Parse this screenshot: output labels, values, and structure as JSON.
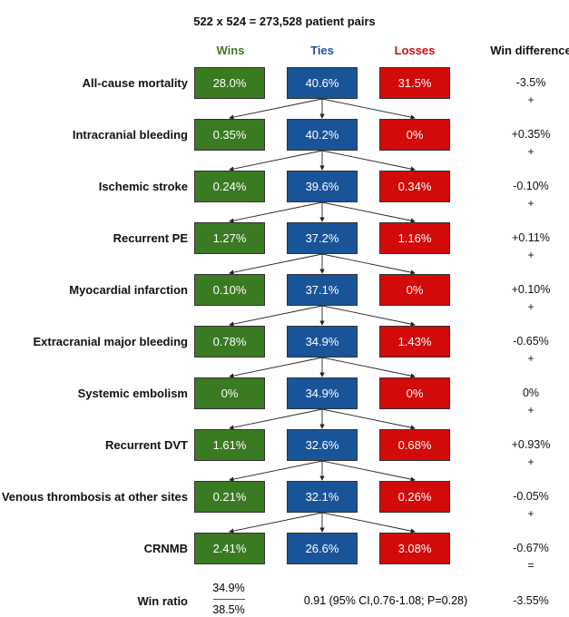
{
  "title": "522 x 524 = 273,528 patient pairs",
  "columns": {
    "wins": "Wins",
    "ties": "Ties",
    "losses": "Losses",
    "win_difference": "Win difference"
  },
  "colors": {
    "wins": "#3a7a22",
    "ties": "#1a5498",
    "losses": "#d20a0a"
  },
  "rows": [
    {
      "label": "All-cause mortality",
      "wins": "28.0%",
      "ties": "40.6%",
      "losses": "31.5%",
      "diff": "-3.5%",
      "op": "+"
    },
    {
      "label": "Intracranial bleeding",
      "wins": "0.35%",
      "ties": "40.2%",
      "losses": "0%",
      "diff": "+0.35%",
      "op": "+"
    },
    {
      "label": "Ischemic stroke",
      "wins": "0.24%",
      "ties": "39.6%",
      "losses": "0.34%",
      "diff": "-0.10%",
      "op": "+"
    },
    {
      "label": "Recurrent PE",
      "wins": "1.27%",
      "ties": "37.2%",
      "losses": "1.16%",
      "diff": "+0.11%",
      "op": "+"
    },
    {
      "label": "Myocardial infarction",
      "wins": "0.10%",
      "ties": "37.1%",
      "losses": "0%",
      "diff": "+0.10%",
      "op": "+"
    },
    {
      "label": "Extracranial major bleeding",
      "wins": "0.78%",
      "ties": "34.9%",
      "losses": "1.43%",
      "diff": "-0.65%",
      "op": "+"
    },
    {
      "label": "Systemic embolism",
      "wins": "0%",
      "ties": "34.9%",
      "losses": "0%",
      "diff": "0%",
      "op": "+"
    },
    {
      "label": "Recurrent DVT",
      "wins": "1.61%",
      "ties": "32.6%",
      "losses": "0.68%",
      "diff": "+0.93%",
      "op": "+"
    },
    {
      "label": "Venous thrombosis at other sites",
      "wins": "0.21%",
      "ties": "32.1%",
      "losses": "0.26%",
      "diff": "-0.05%",
      "op": "+"
    },
    {
      "label": "CRNMB",
      "wins": "2.41%",
      "ties": "26.6%",
      "losses": "3.08%",
      "diff": "-0.67%",
      "op": "="
    }
  ],
  "win_ratio": {
    "label": "Win ratio",
    "numerator": "34.9%",
    "denominator": "38.5%",
    "result": "0.91 (95% CI,0.76-1.08; P=0.28)",
    "total_diff": "-3.55%"
  }
}
